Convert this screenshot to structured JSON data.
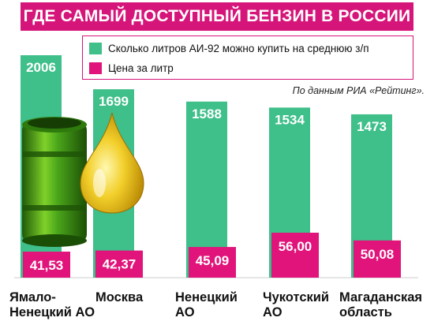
{
  "title": "ГДЕ САМЫЙ ДОСТУПНЫЙ БЕНЗИН В РОССИИ",
  "source_note": "По данным РИА «Рейтинг».",
  "colors": {
    "green": "#3fbf8a",
    "pink": "#e0147a",
    "title_bg": "#d6157a"
  },
  "chart_data": {
    "type": "bar",
    "title": "ГДЕ САМЫЙ ДОСТУПНЫЙ БЕНЗИН В РОССИИ",
    "categories": [
      "Ямало-\nНенецкий АО",
      "Москва",
      "Ненецкий\nАО",
      "Чукотский\nАО",
      "Магаданская\nобласть"
    ],
    "series": [
      {
        "name": "Сколько литров АИ-92 можно купить на среднюю з/п",
        "values": [
          2006,
          1699,
          1588,
          1534,
          1473
        ],
        "labels": [
          "2006",
          "1699",
          "1588",
          "1534",
          "1473"
        ]
      },
      {
        "name": "Цена за литр",
        "values": [
          41.53,
          42.37,
          45.09,
          56.0,
          50.08
        ],
        "labels": [
          "41,53",
          "42,37",
          "45,09",
          "56,00",
          "50,08"
        ]
      }
    ],
    "xlabel": "",
    "ylabel": "",
    "legend_position": "top",
    "grid": false
  }
}
